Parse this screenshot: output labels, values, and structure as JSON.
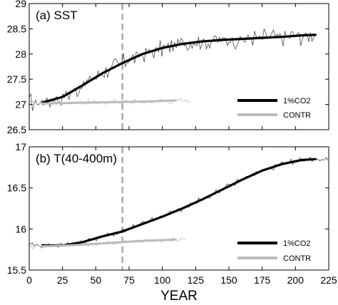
{
  "chart_data": [
    {
      "type": "line",
      "title": "(a) SST",
      "xlabel": "",
      "ylabel": "",
      "xlim": [
        0,
        225
      ],
      "ylim": [
        26.5,
        29
      ],
      "xticks": [
        0,
        25,
        50,
        75,
        100,
        125,
        150,
        175,
        200,
        225
      ],
      "yticks": [
        26.5,
        27,
        27.5,
        28,
        28.5,
        29
      ],
      "ytick_labels": [
        "26.5",
        "27",
        "27.5",
        "28",
        "28.5",
        "29"
      ],
      "vline_x": 70,
      "legend": {
        "position": "bottom-right",
        "entries": [
          "1%CO2",
          "CONTR"
        ]
      },
      "series": [
        {
          "name": "1%CO2",
          "color": "#000000",
          "smooth": {
            "x": [
              10,
              25,
              40,
              55,
              70,
              85,
              100,
              115,
              130,
              145,
              160,
              175,
              190,
              205,
              215
            ],
            "y": [
              27.04,
              27.15,
              27.38,
              27.62,
              27.82,
              28.0,
              28.12,
              28.2,
              28.25,
              28.28,
              28.3,
              28.32,
              28.34,
              28.37,
              28.38
            ]
          }
        },
        {
          "name": "CONTR",
          "color": "#bbbbbb",
          "smooth": {
            "x": [
              10,
              30,
              50,
              70,
              90,
              110
            ],
            "y": [
              27.02,
              27.03,
              27.04,
              27.05,
              27.06,
              27.08
            ]
          }
        }
      ]
    },
    {
      "type": "line",
      "title": "(b) T(40-400m)",
      "xlabel": "YEAR",
      "ylabel": "",
      "xlim": [
        0,
        225
      ],
      "ylim": [
        15.5,
        17
      ],
      "xticks": [
        0,
        25,
        50,
        75,
        100,
        125,
        150,
        175,
        200,
        225
      ],
      "xtick_labels": [
        "0",
        "25",
        "50",
        "75",
        "100",
        "125",
        "150",
        "175",
        "200",
        "225"
      ],
      "yticks": [
        15.5,
        16,
        16.5,
        17
      ],
      "ytick_labels": [
        "15.5",
        "16",
        "16.5",
        "17"
      ],
      "vline_x": 70,
      "legend": {
        "position": "bottom-right",
        "entries": [
          "1%CO2",
          "CONTR"
        ]
      },
      "series": [
        {
          "name": "1%CO2",
          "color": "#000000",
          "smooth": {
            "x": [
              10,
              25,
              40,
              55,
              70,
              85,
              100,
              115,
              130,
              145,
              160,
              175,
              190,
              205,
              215
            ],
            "y": [
              15.8,
              15.8,
              15.84,
              15.91,
              15.97,
              16.06,
              16.15,
              16.25,
              16.36,
              16.48,
              16.6,
              16.71,
              16.79,
              16.84,
              16.85
            ]
          }
        },
        {
          "name": "CONTR",
          "color": "#bbbbbb",
          "smooth": {
            "x": [
              10,
              30,
              50,
              70,
              90,
              110
            ],
            "y": [
              15.79,
              15.8,
              15.82,
              15.84,
              15.86,
              15.87
            ]
          }
        }
      ]
    }
  ]
}
